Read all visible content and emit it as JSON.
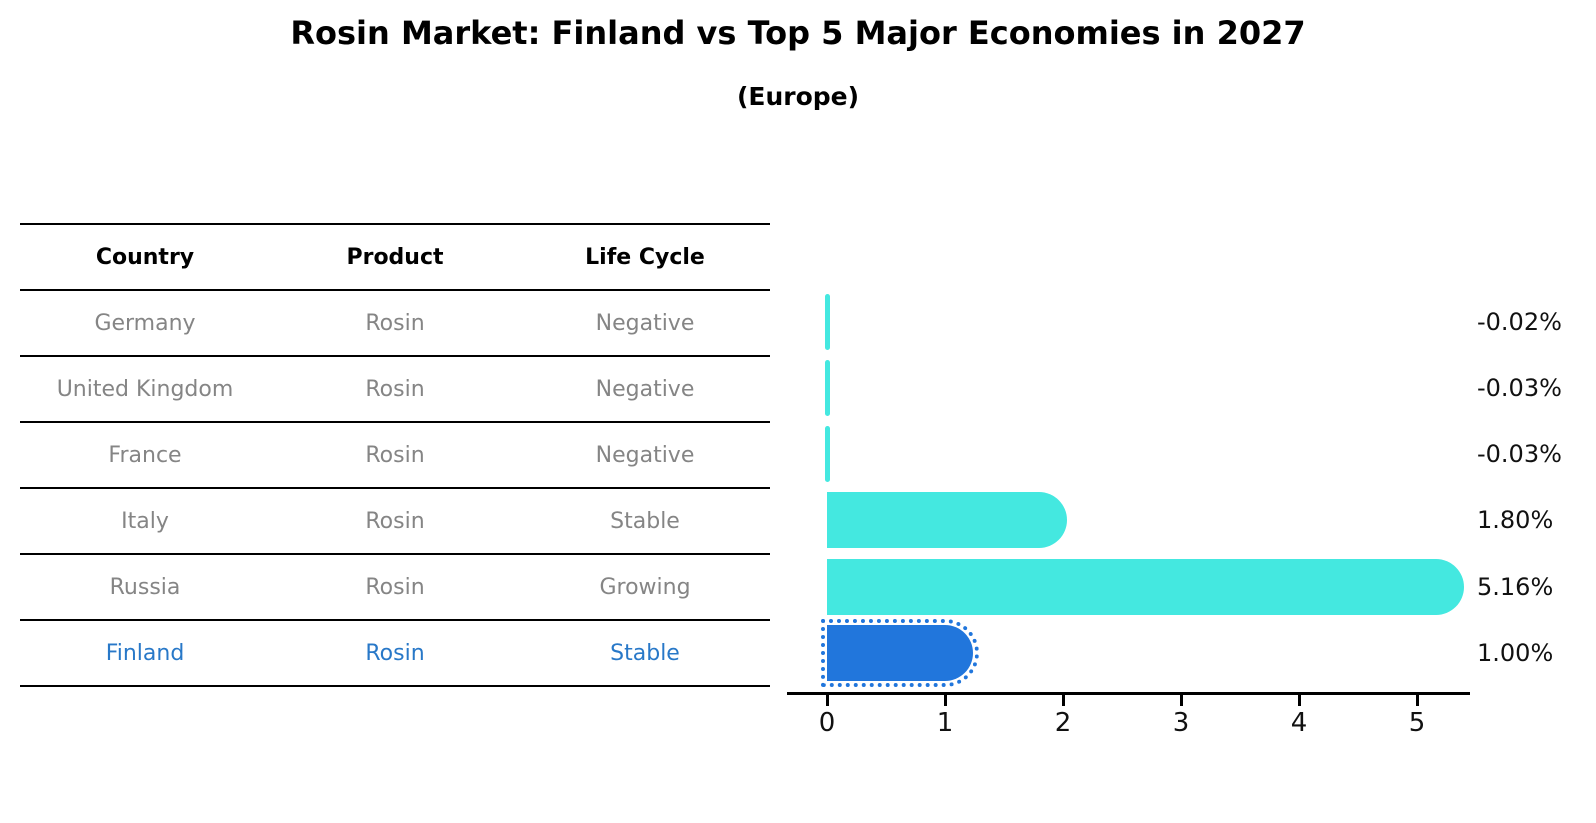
{
  "title": "Rosin Market: Finland vs Top 5 Major Economies in 2027",
  "subtitle": "(Europe)",
  "table": {
    "headers": [
      "Country",
      "Product",
      "Life Cycle"
    ],
    "rows": [
      {
        "country": "Germany",
        "product": "Rosin",
        "life_cycle": "Negative",
        "highlight": false
      },
      {
        "country": "United Kingdom",
        "product": "Rosin",
        "life_cycle": "Negative",
        "highlight": false
      },
      {
        "country": "France",
        "product": "Rosin",
        "life_cycle": "Negative",
        "highlight": false
      },
      {
        "country": "Italy",
        "product": "Rosin",
        "life_cycle": "Stable",
        "highlight": false
      },
      {
        "country": "Russia",
        "product": "Rosin",
        "life_cycle": "Growing",
        "highlight": false
      },
      {
        "country": "Finland",
        "product": "Rosin",
        "life_cycle": "Stable",
        "highlight": true
      }
    ]
  },
  "chart_data": {
    "type": "bar",
    "orientation": "horizontal",
    "title": "Rosin Market: Finland vs Top 5 Major Economies in 2027",
    "subtitle": "(Europe)",
    "categories": [
      "Germany",
      "United Kingdom",
      "France",
      "Italy",
      "Russia",
      "Finland"
    ],
    "values": [
      -0.02,
      -0.03,
      -0.03,
      1.8,
      5.16,
      1.0
    ],
    "value_labels": [
      "-0.02%",
      "-0.03%",
      "-0.03%",
      "1.80%",
      "5.16%",
      "1.00%"
    ],
    "xlabel": "",
    "ylabel": "",
    "xlim": [
      -0.34,
      5.45
    ],
    "xticks": [
      0,
      1,
      2,
      3,
      4,
      5
    ],
    "grid": false,
    "legend": "none",
    "highlight_index": 5,
    "colors": {
      "default_bar": "#44e8e0",
      "highlight_bar": "#2176dc",
      "highlight_text": "#2878c8",
      "table_text": "#858585",
      "axis_text": "#111111"
    }
  }
}
